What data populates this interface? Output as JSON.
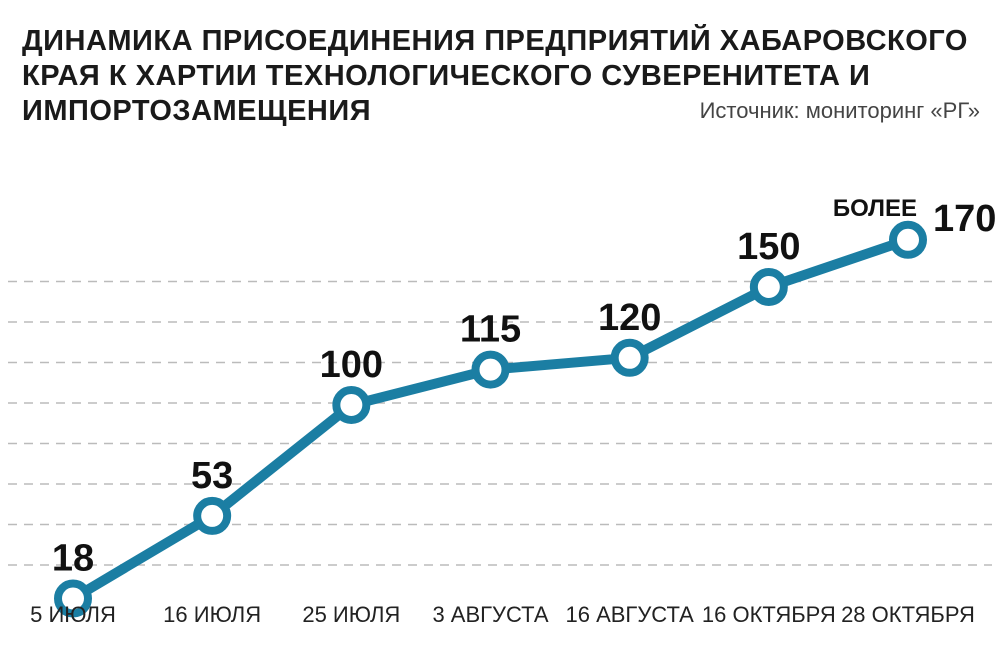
{
  "title_lines": [
    "ДИНАМИКА ПРИСОЕДИНЕНИЯ ПРЕДПРИЯТИЙ ХАБАРОВСКОГО",
    "КРАЯ К ХАРТИИ ТЕХНОЛОГИЧЕСКОГО СУВЕРЕНИТЕТА И",
    "ИМПОРТОЗАМЕЩЕНИЯ"
  ],
  "source": "Источник: мониторинг «РГ»",
  "colors": {
    "line": "#1b7ea3",
    "marker_fill": "#ffffff",
    "grid": "#bbbbbb",
    "text": "#111111"
  },
  "chart_data": {
    "type": "line",
    "title": "ДИНАМИКА ПРИСОЕДИНЕНИЯ ПРЕДПРИЯТИЙ ХАБАРОВСКОГО КРАЯ К ХАРТИИ ТЕХНОЛОГИЧЕСКОГО СУВЕРЕНИТЕТА И ИМПОРТОЗАМЕЩЕНИЯ",
    "categories": [
      "5 ИЮЛЯ",
      "16 ИЮЛЯ",
      "25 ИЮЛЯ",
      "3 АВГУСТА",
      "16 АВГУСТА",
      "16 ОКТЯБРЯ",
      "28 ОКТЯБРЯ"
    ],
    "values": [
      18,
      53,
      100,
      115,
      120,
      150,
      170
    ],
    "data_labels": [
      "18",
      "53",
      "100",
      "115",
      "120",
      "150",
      "170"
    ],
    "label_prefix": "БОЛЕЕ",
    "ylim": [
      0,
      185
    ],
    "grid": true,
    "grid_style": "dashed",
    "legend": "none"
  }
}
